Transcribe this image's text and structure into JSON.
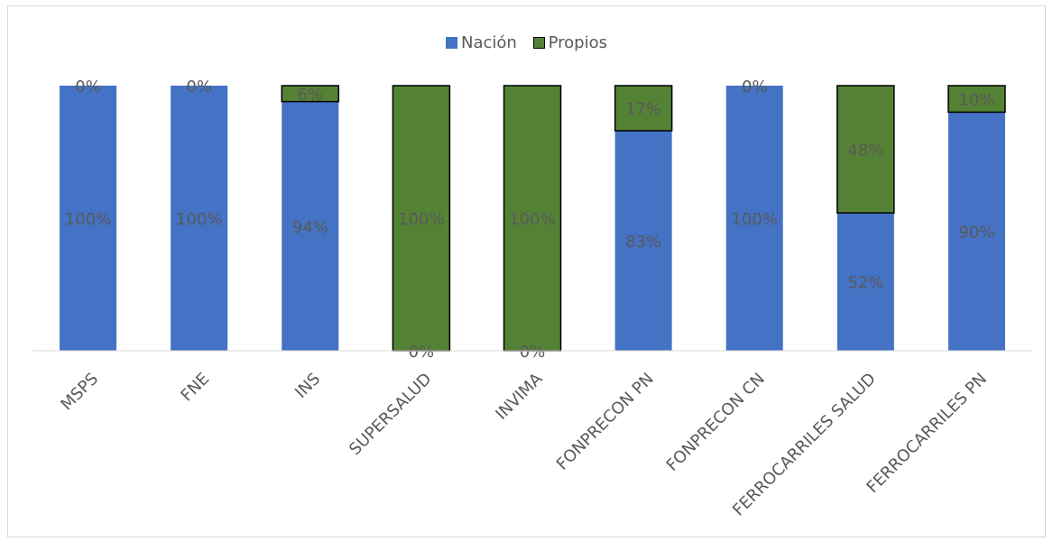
{
  "chart_data": {
    "type": "bar",
    "stacked": true,
    "percent": true,
    "categories": [
      "MSPS",
      "FNE",
      "INS",
      "SUPERSALUD",
      "INVIMA",
      "FONPRECON PN",
      "FONPRECON CN",
      "FERROCARRILES SALUD",
      "FERROCARRILES PN"
    ],
    "series": [
      {
        "name": "Nación",
        "color": "#4472c4",
        "values": [
          100,
          100,
          94,
          0,
          0,
          83,
          100,
          52,
          90
        ]
      },
      {
        "name": "Propios",
        "color": "#548235",
        "values": [
          0,
          0,
          6,
          100,
          100,
          17,
          0,
          48,
          10
        ]
      }
    ],
    "ylim": [
      0,
      100
    ],
    "legend_position": "top",
    "grid": false,
    "title": "",
    "xlabel": "",
    "ylabel": ""
  }
}
